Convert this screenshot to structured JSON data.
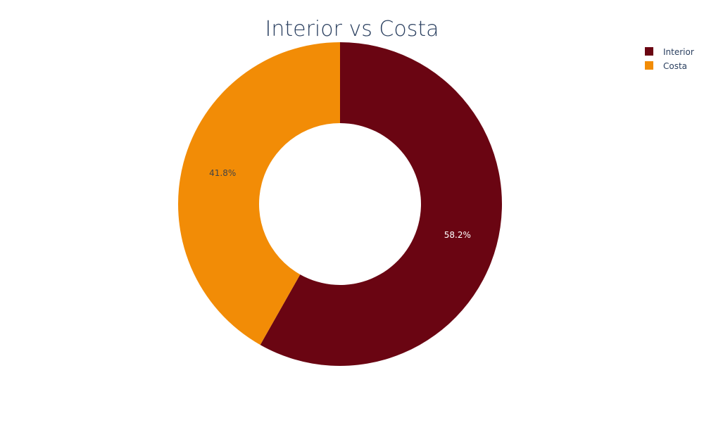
{
  "chart_data": {
    "type": "pie",
    "title": "Interior vs Costa",
    "hole": 0.5,
    "slices": [
      {
        "label": "Interior",
        "value": 58.2,
        "percent_label": "58.2%",
        "color": "#6a0512",
        "text_color": "#ffffff"
      },
      {
        "label": "Costa",
        "value": 41.8,
        "percent_label": "41.8%",
        "color": "#f28c06",
        "text_color": "#444444"
      }
    ],
    "legend_position": "top-right"
  }
}
